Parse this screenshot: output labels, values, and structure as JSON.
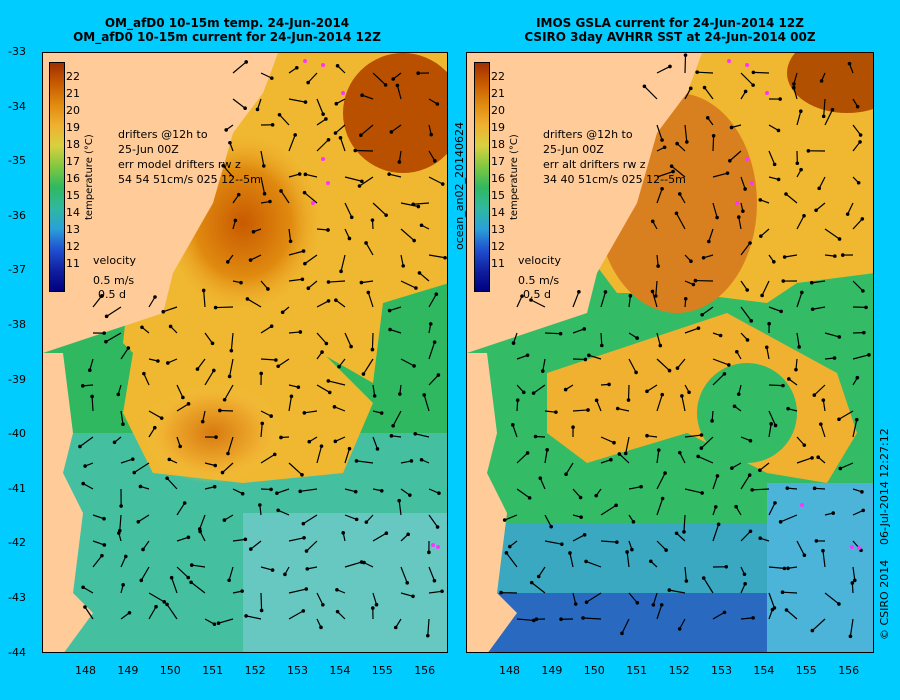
{
  "panels": [
    {
      "title_line1": "OM_afD0 10-15m temp. 24-Jun-2014",
      "title_line2": "OM_afD0 10-15m current for 24-Jun-2014 12Z",
      "note_line1": "drifters @12h to",
      "note_line2": "25-Jun 00Z",
      "note_line3": "err model drifters rw z",
      "note_line4": "54   54     51cm/s 025 12--5m",
      "velocity_label": "velocity",
      "velocity_speed": "0.5 m/s",
      "velocity_time": "0.5 d",
      "colorbar_label": "temperature (°C)"
    },
    {
      "title_line1": "IMOS GSLA current for 24-Jun-2014 12Z",
      "title_line2": "CSIRO 3day AVHRR SST at 24-Jun-2014 00Z",
      "note_line1": "drifters @12h to",
      "note_line2": "25-Jun 00Z",
      "note_line3": "err alt drifters rw z",
      "note_line4": "34 40 51cm/s 025 12--5m",
      "velocity_label": "velocity",
      "velocity_speed": "0.5 m/s",
      "velocity_time": "0.5 d",
      "colorbar_label": "temperature (°C)"
    }
  ],
  "side_label": "ocean_an02_20140624",
  "right_label1": "06-Jul-2014 12:27:12",
  "right_label2": "© CSIRO 2014",
  "lat_ticks": [
    "-33",
    "-34",
    "-35",
    "-36",
    "-37",
    "-38",
    "-39",
    "-40",
    "-41",
    "-42",
    "-43",
    "-44"
  ],
  "lon_ticks": [
    "148",
    "149",
    "150",
    "151",
    "152",
    "153",
    "154",
    "155",
    "156"
  ],
  "colorbar_ticks": [
    "22",
    "21",
    "20",
    "19",
    "18",
    "17",
    "16",
    "15",
    "14",
    "13",
    "12",
    "11"
  ],
  "colors": {
    "background": "#00ccff",
    "land": "#ffcc99",
    "warm": "#c86400",
    "cool": "#33bb66"
  }
}
